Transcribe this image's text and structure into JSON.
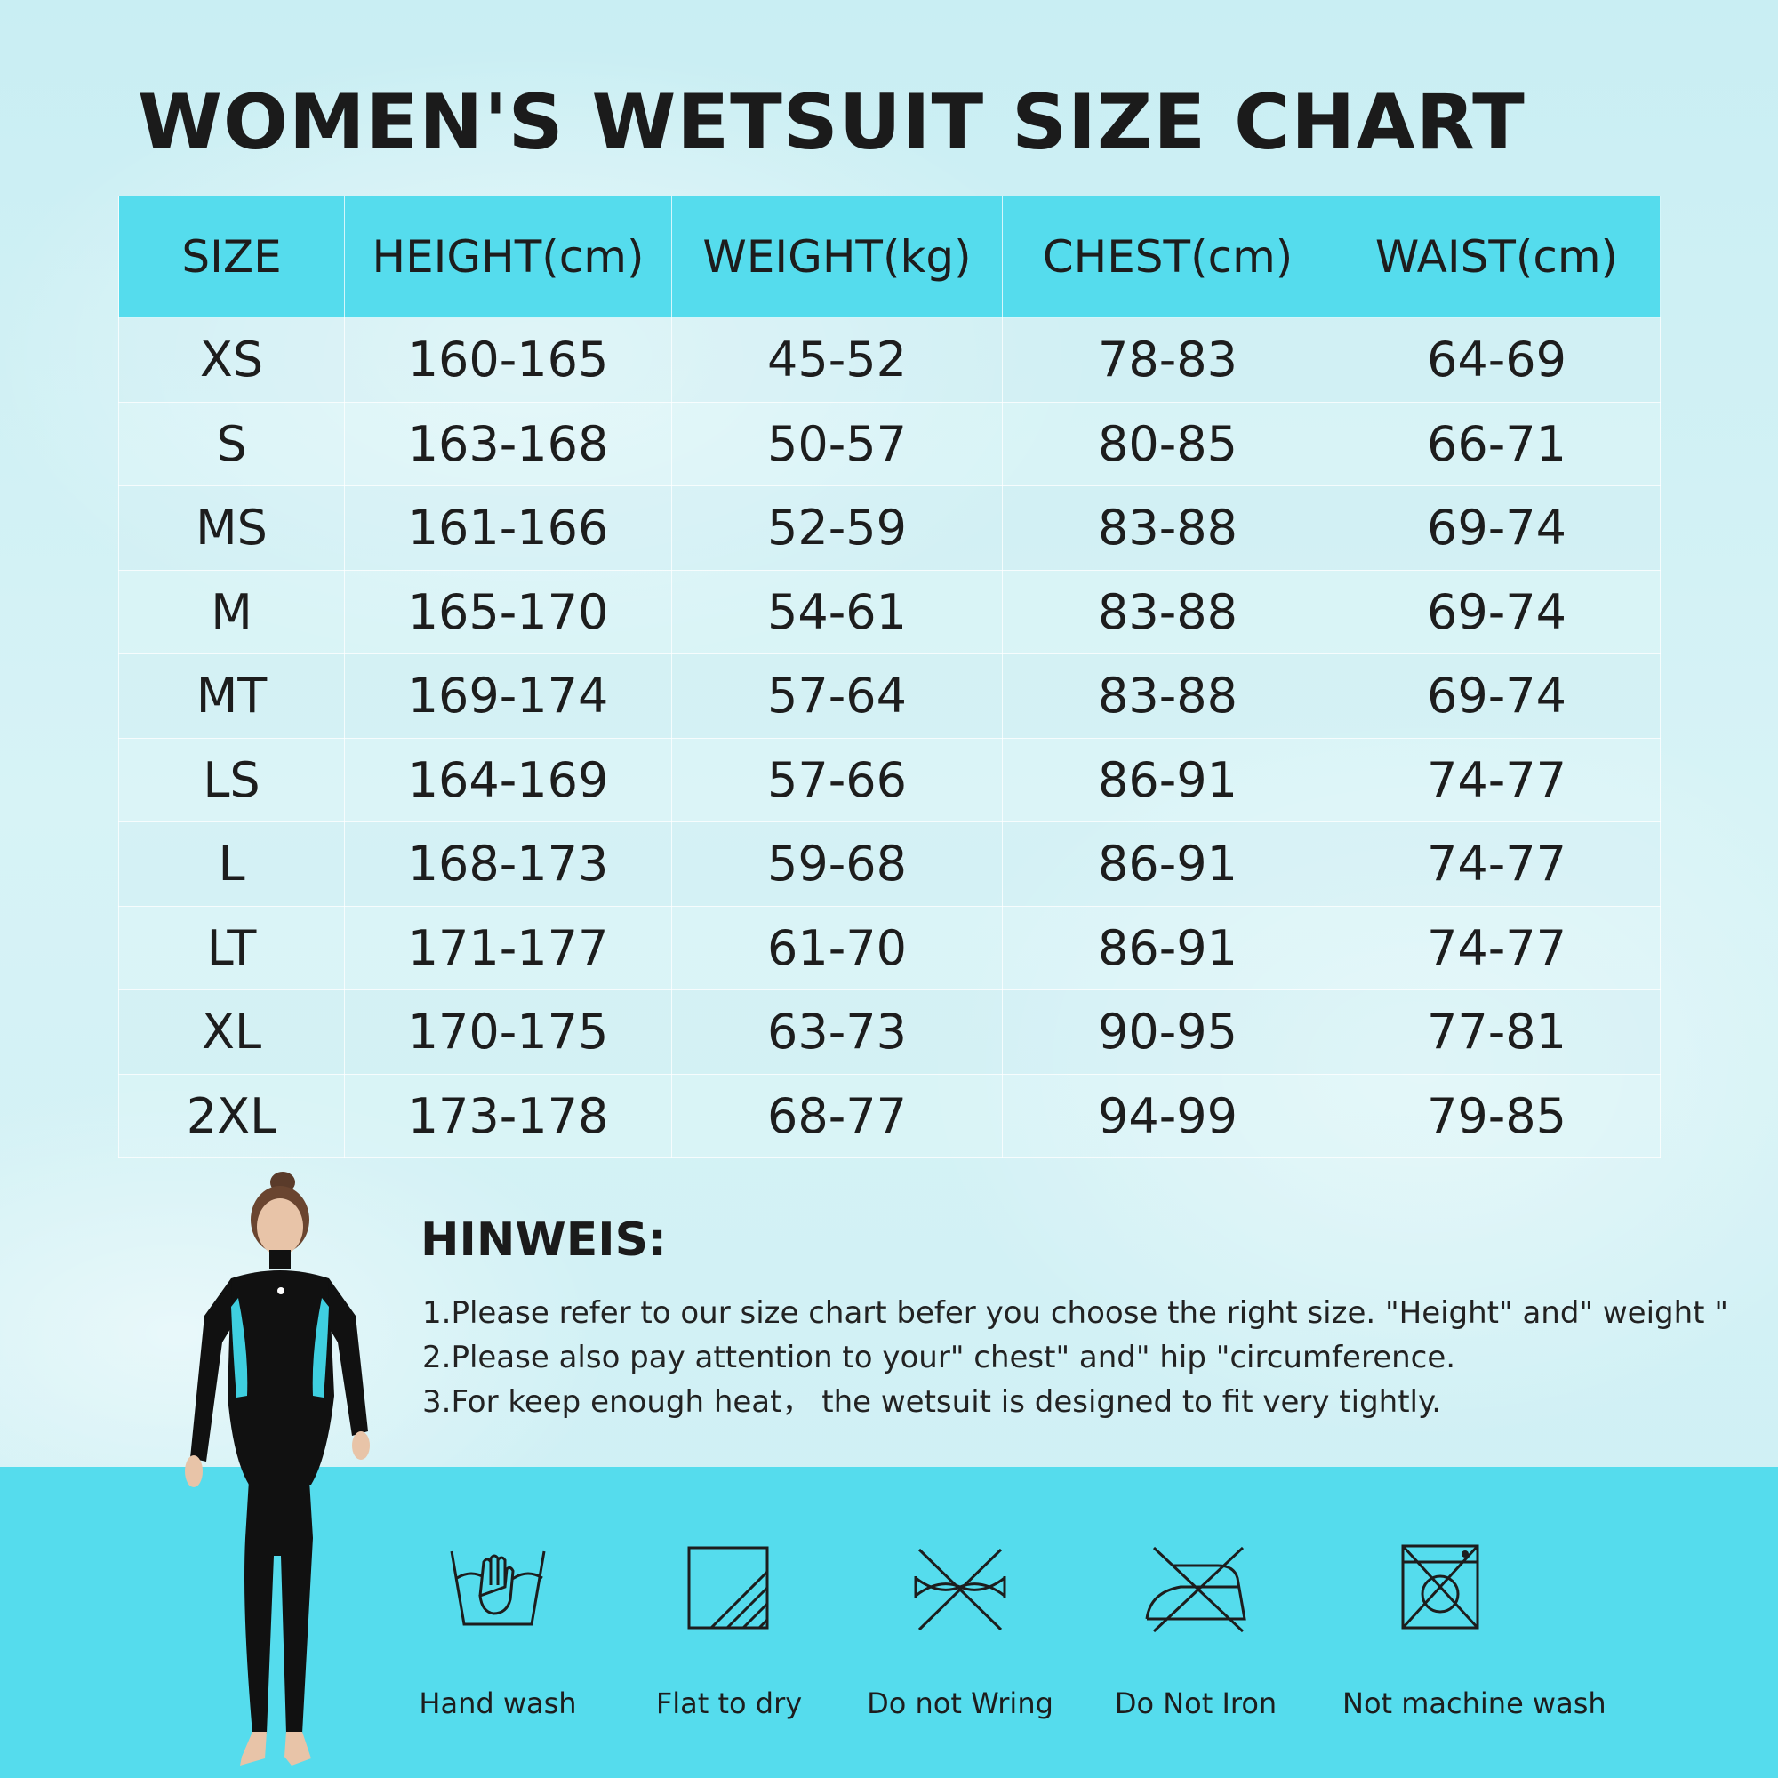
{
  "title": "WOMEN'S WETSUIT SIZE CHART",
  "table": {
    "headers": [
      "SIZE",
      "HEIGHT(cm)",
      "WEIGHT(kg)",
      "CHEST(cm)",
      "WAIST(cm)"
    ],
    "rows": [
      [
        "XS",
        "160-165",
        "45-52",
        "78-83",
        "64-69"
      ],
      [
        "S",
        "163-168",
        "50-57",
        "80-85",
        "66-71"
      ],
      [
        "MS",
        "161-166",
        "52-59",
        "83-88",
        "69-74"
      ],
      [
        "M",
        "165-170",
        "54-61",
        "83-88",
        "69-74"
      ],
      [
        "MT",
        "169-174",
        "57-64",
        "83-88",
        "69-74"
      ],
      [
        "LS",
        "164-169",
        "57-66",
        "86-91",
        "74-77"
      ],
      [
        "L",
        "168-173",
        "59-68",
        "86-91",
        "74-77"
      ],
      [
        "LT",
        "171-177",
        "61-70",
        "86-91",
        "74-77"
      ],
      [
        "XL",
        "170-175",
        "63-73",
        "90-95",
        "77-81"
      ],
      [
        "2XL",
        "173-178",
        "68-77",
        "94-99",
        "79-85"
      ]
    ]
  },
  "note": {
    "heading": "HINWEIS:",
    "lines": [
      "1.Please refer to our size chart befer you choose the right size.  \"Height\" and\" weight \"",
      "2.Please also pay attention to your\" chest\" and\" hip \"circumference.",
      "3.For keep enough heat， the wetsuit is designed to fit very tightly."
    ]
  },
  "care": [
    {
      "icon": "hand-wash-icon",
      "label": "Hand wash"
    },
    {
      "icon": "flat-dry-icon",
      "label": "Flat to dry"
    },
    {
      "icon": "do-not-wring-icon",
      "label": "Do not Wring"
    },
    {
      "icon": "do-not-iron-icon",
      "label": "Do Not Iron"
    },
    {
      "icon": "no-machine-wash-icon",
      "label": "Not machine wash"
    }
  ],
  "colors": {
    "accent": "#55dced",
    "suit_black": "#111111",
    "suit_panel": "#3fcfe0"
  }
}
